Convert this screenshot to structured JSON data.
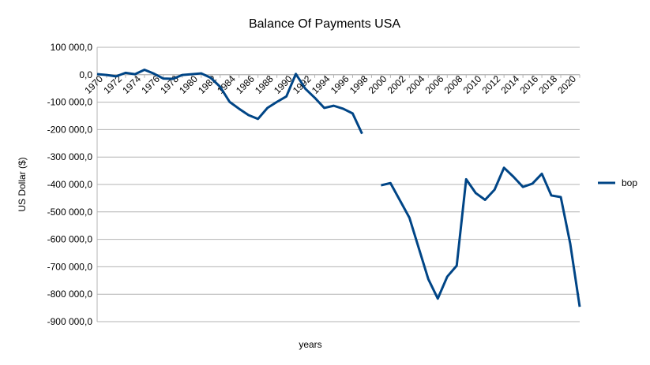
{
  "chart_data": {
    "type": "line",
    "title": "Balance Of Payments USA",
    "x_label": "years",
    "y_label": "US Dollar ($)",
    "categories": [
      "1970",
      null,
      "1972",
      null,
      "1974",
      null,
      "1976",
      null,
      "1978",
      null,
      "1980",
      null,
      "1982",
      null,
      "1984",
      null,
      "1986",
      null,
      "1988",
      null,
      "1990",
      null,
      "1992",
      null,
      "1994",
      null,
      "1996",
      null,
      "1998",
      null,
      "2000",
      null,
      "2002",
      null,
      "2004",
      null,
      "2006",
      null,
      "2008",
      null,
      "2010",
      null,
      "2012",
      null,
      "2014",
      null,
      "2016",
      null,
      "2018",
      null,
      "2020",
      null
    ],
    "series": [
      {
        "name": "bop",
        "color": "#004586",
        "values": [
          2300,
          -1000,
          -6000,
          7000,
          2000,
          18000,
          4000,
          -14000,
          -15000,
          -1000,
          2000,
          5000,
          -11000,
          -44000,
          -99000,
          -124000,
          -147000,
          -161000,
          -121000,
          -99000,
          -79000,
          3000,
          -51000,
          -84000,
          -121000,
          -113000,
          -124000,
          -141000,
          -215000,
          null,
          -403000,
          -395000,
          -458000,
          -521000,
          -633000,
          -745000,
          -816000,
          -736000,
          -696000,
          -381000,
          -431000,
          -456000,
          -419000,
          -339000,
          -372000,
          -409000,
          -397000,
          -361000,
          -440000,
          -446000,
          -616000,
          -846000
        ]
      }
    ],
    "ylim": [
      -900000,
      100000
    ],
    "yticks": [
      {
        "value": -900000,
        "label": "-900 000,0"
      },
      {
        "value": -800000,
        "label": "-800 000,0"
      },
      {
        "value": -700000,
        "label": "-700 000,0"
      },
      {
        "value": -600000,
        "label": "-600 000,0"
      },
      {
        "value": -500000,
        "label": "-500 000,0"
      },
      {
        "value": -400000,
        "label": "-400 000,0"
      },
      {
        "value": -300000,
        "label": "-300 000,0"
      },
      {
        "value": -200000,
        "label": "-200 000,0"
      },
      {
        "value": -100000,
        "label": "-100 000,0"
      },
      {
        "value": 0,
        "label": "0,0"
      },
      {
        "value": 100000,
        "label": "100 000,0"
      }
    ],
    "grid": true,
    "legend": "right"
  }
}
